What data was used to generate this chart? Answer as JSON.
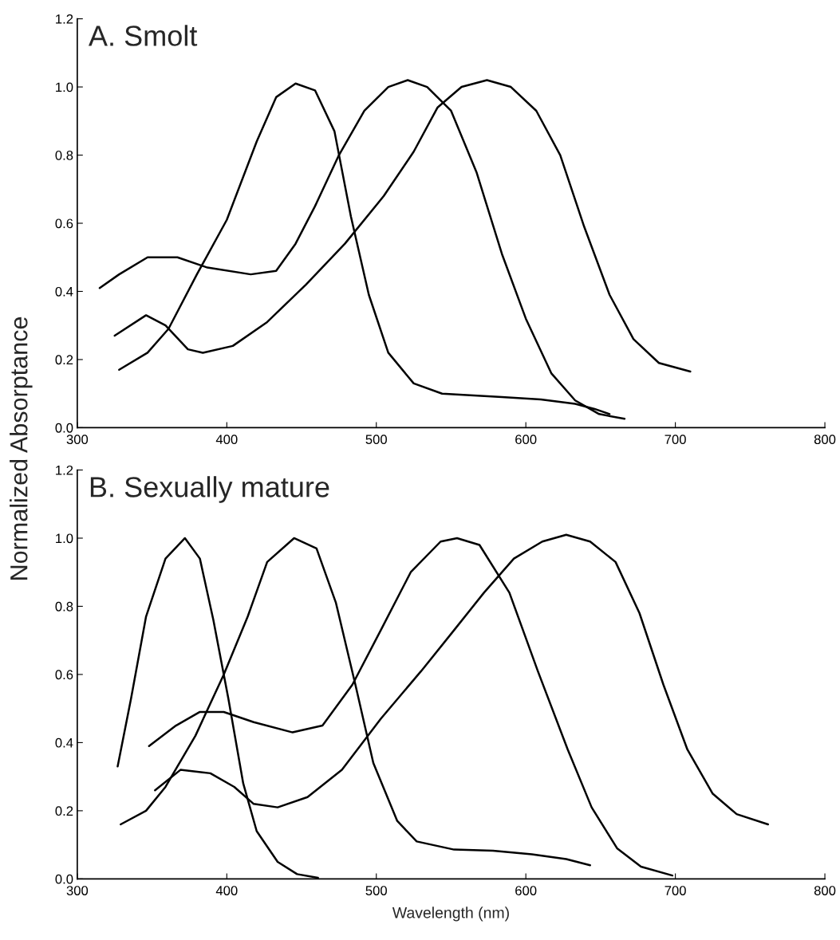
{
  "chart_data": [
    {
      "type": "line",
      "title": "A. Smolt",
      "ylabel": "Normalized Absorptance",
      "xlim": [
        300,
        800
      ],
      "ylim": [
        0,
        1.2
      ],
      "xticks": [
        300,
        400,
        500,
        600,
        700,
        800
      ],
      "yticks": [
        {
          "value": 0,
          "label": "0.0"
        },
        {
          "value": 0.2,
          "label": "0.2"
        },
        {
          "value": 0.4,
          "label": "0.4"
        },
        {
          "value": 0.6,
          "label": "0.6"
        },
        {
          "value": 0.8,
          "label": "0.8"
        },
        {
          "value": 1.0,
          "label": "1.0"
        },
        {
          "value": 1.2,
          "label": "1.2"
        }
      ],
      "grid": false,
      "marker": "none",
      "line_style": "solid",
      "series": [
        {
          "color": "#000000",
          "x": [
            328,
            347,
            361,
            380,
            400,
            420,
            433,
            446,
            459,
            472,
            483,
            495,
            508,
            525,
            544,
            584,
            610,
            633,
            646,
            656
          ],
          "values": [
            0.17,
            0.22,
            0.29,
            0.45,
            0.61,
            0.84,
            0.97,
            1.01,
            0.99,
            0.87,
            0.62,
            0.39,
            0.22,
            0.13,
            0.1,
            0.09,
            0.083,
            0.07,
            0.055,
            0.04
          ]
        },
        {
          "color": "#000000",
          "x": [
            315,
            328,
            347,
            367,
            387,
            416,
            433,
            446,
            459,
            475,
            492,
            508,
            521,
            534,
            550,
            567,
            584,
            600,
            617,
            633,
            649,
            666
          ],
          "values": [
            0.41,
            0.45,
            0.5,
            0.5,
            0.47,
            0.45,
            0.46,
            0.54,
            0.65,
            0.8,
            0.93,
            1.0,
            1.02,
            1.0,
            0.93,
            0.75,
            0.51,
            0.32,
            0.16,
            0.08,
            0.04,
            0.026
          ]
        },
        {
          "color": "#000000",
          "x": [
            325,
            346,
            359,
            374,
            384,
            404,
            427,
            453,
            479,
            505,
            525,
            541,
            557,
            574,
            590,
            607,
            623,
            639,
            656,
            672,
            689,
            710
          ],
          "values": [
            0.27,
            0.33,
            0.3,
            0.23,
            0.22,
            0.24,
            0.31,
            0.42,
            0.54,
            0.68,
            0.81,
            0.94,
            1.0,
            1.02,
            1.0,
            0.93,
            0.8,
            0.59,
            0.39,
            0.26,
            0.19,
            0.165
          ]
        }
      ]
    },
    {
      "type": "line",
      "title": "B. Sexually mature",
      "xlabel": "Wavelength (nm)",
      "xlim": [
        300,
        800
      ],
      "ylim": [
        0,
        1.2
      ],
      "xticks": [
        300,
        400,
        500,
        600,
        700,
        800
      ],
      "yticks": [
        {
          "value": 0,
          "label": "0.0"
        },
        {
          "value": 0.2,
          "label": "0.2"
        },
        {
          "value": 0.4,
          "label": "0.4"
        },
        {
          "value": 0.6,
          "label": "0.6"
        },
        {
          "value": 0.8,
          "label": "0.8"
        },
        {
          "value": 1.0,
          "label": "1.0"
        },
        {
          "value": 1.2,
          "label": "1.2"
        }
      ],
      "grid": false,
      "marker": "none",
      "line_style": "solid",
      "series": [
        {
          "color": "#000000",
          "x": [
            327,
            336,
            346,
            359,
            372,
            382,
            391,
            401,
            411,
            420,
            434,
            447,
            461
          ],
          "values": [
            0.33,
            0.53,
            0.77,
            0.94,
            1.0,
            0.94,
            0.76,
            0.53,
            0.28,
            0.14,
            0.05,
            0.014,
            0.003
          ]
        },
        {
          "color": "#000000",
          "x": [
            329,
            346,
            359,
            379,
            398,
            414,
            427,
            445,
            460,
            473,
            486,
            498,
            514,
            527,
            552,
            578,
            604,
            627,
            643
          ],
          "values": [
            0.16,
            0.2,
            0.27,
            0.42,
            0.6,
            0.77,
            0.93,
            1.0,
            0.97,
            0.81,
            0.57,
            0.34,
            0.17,
            0.11,
            0.086,
            0.083,
            0.072,
            0.058,
            0.04
          ]
        },
        {
          "color": "#000000",
          "x": [
            348,
            366,
            382,
            398,
            418,
            444,
            464,
            484,
            503,
            523,
            543,
            554,
            569,
            589,
            608,
            628,
            644,
            661,
            677,
            698
          ],
          "values": [
            0.39,
            0.45,
            0.49,
            0.49,
            0.46,
            0.43,
            0.45,
            0.57,
            0.73,
            0.9,
            0.99,
            1.0,
            0.98,
            0.84,
            0.61,
            0.38,
            0.21,
            0.09,
            0.036,
            0.01
          ]
        },
        {
          "color": "#000000",
          "x": [
            352,
            369,
            389,
            405,
            418,
            434,
            454,
            477,
            503,
            530,
            552,
            572,
            592,
            611,
            627,
            643,
            660,
            676,
            692,
            708,
            725,
            741,
            762
          ],
          "values": [
            0.26,
            0.32,
            0.31,
            0.27,
            0.22,
            0.21,
            0.24,
            0.32,
            0.47,
            0.61,
            0.73,
            0.84,
            0.94,
            0.99,
            1.01,
            0.99,
            0.93,
            0.78,
            0.57,
            0.38,
            0.25,
            0.19,
            0.16
          ]
        }
      ]
    }
  ]
}
